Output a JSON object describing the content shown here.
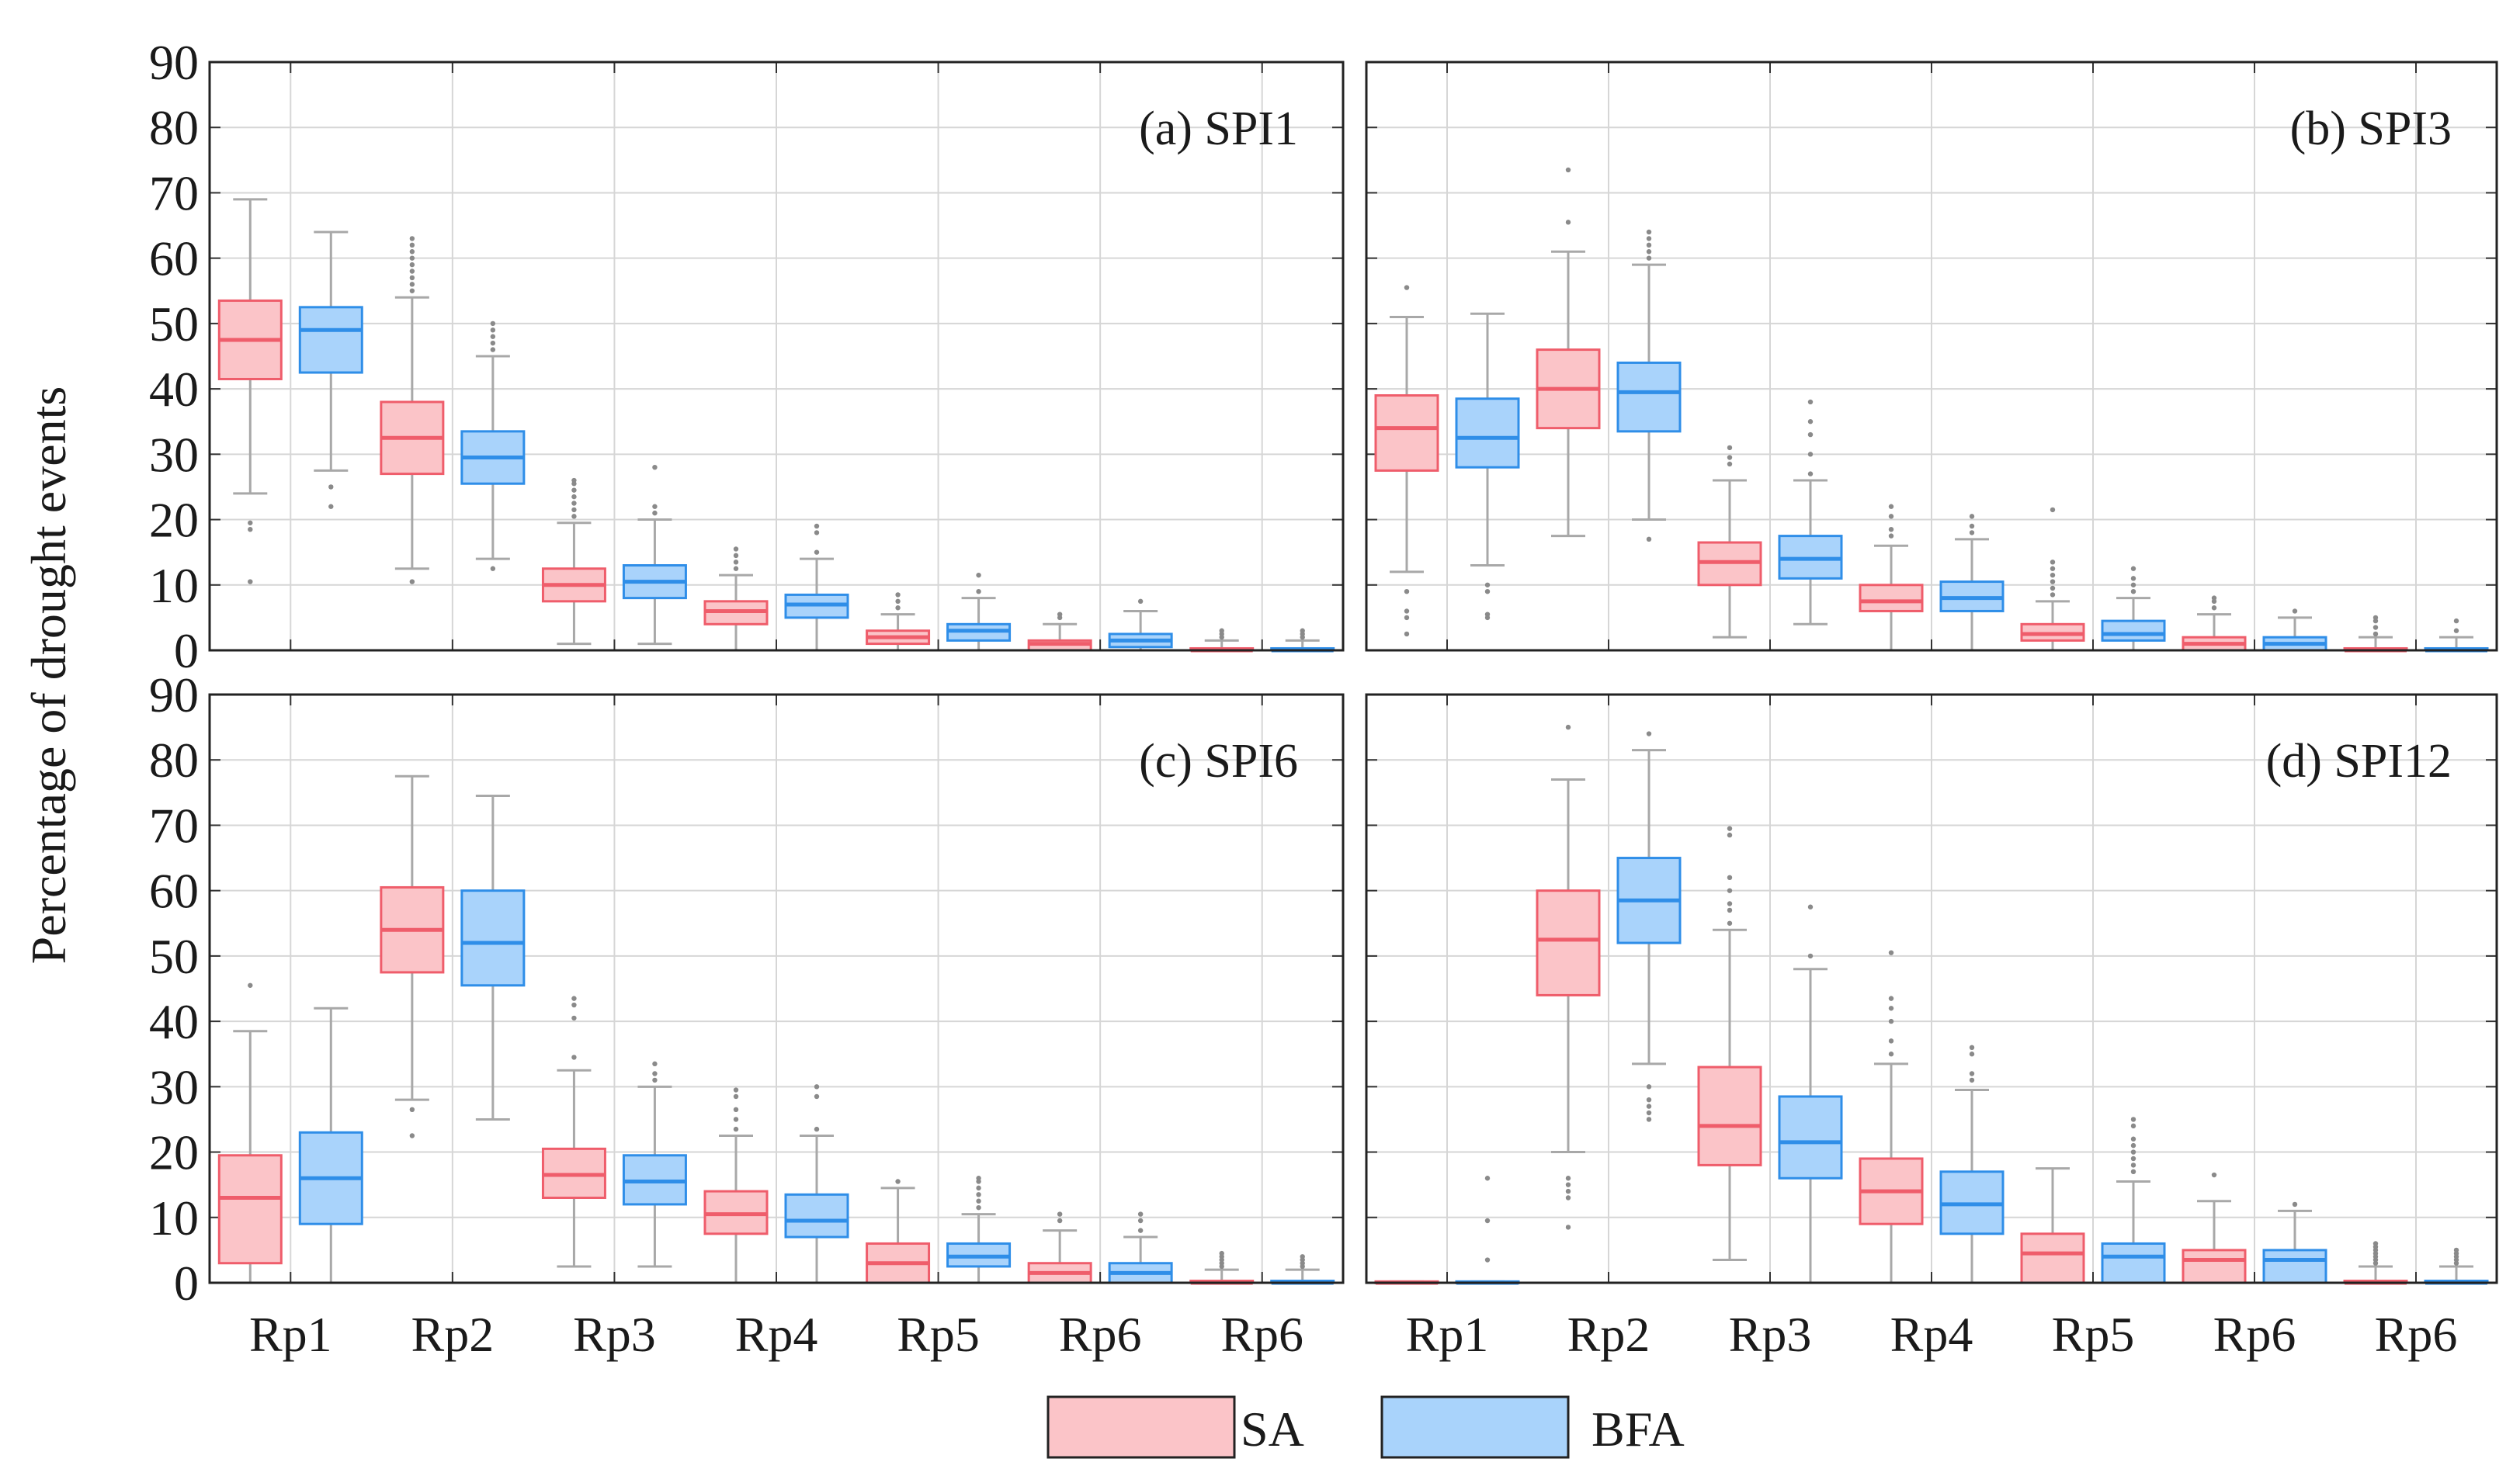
{
  "chart_data": {
    "type": "boxplot",
    "ylabel": "Percentage of drought events",
    "ylim": [
      0,
      90
    ],
    "yticks": [
      0,
      10,
      20,
      30,
      40,
      50,
      60,
      70,
      80,
      90
    ],
    "grid": true,
    "categories": [
      "Rp1",
      "Rp2",
      "Rp3",
      "Rp4",
      "Rp5",
      "Rp6",
      "Rp6"
    ],
    "legend": {
      "position": "bottom-center",
      "entries": [
        {
          "name": "SA",
          "fill": "#fbc4c8",
          "stroke": "#ef5d6b"
        },
        {
          "name": "BFA",
          "fill": "#a9d3fb",
          "stroke": "#2f8ee8"
        }
      ]
    },
    "panels": [
      {
        "title": "(a) SPI1",
        "series": [
          {
            "name": "SA",
            "boxes": [
              {
                "q1": 41.5,
                "median": 47.5,
                "q3": 53.5,
                "whislo": 24,
                "whishi": 69,
                "outliers": [
                  19.5,
                  18.5,
                  10.5
                ]
              },
              {
                "q1": 27,
                "median": 32.5,
                "q3": 38,
                "whislo": 12.5,
                "whishi": 54,
                "outliers": [
                  55,
                  56,
                  57,
                  58,
                  59,
                  60,
                  61,
                  62,
                  63,
                  10.5
                ]
              },
              {
                "q1": 7.5,
                "median": 10,
                "q3": 12.5,
                "whislo": 1,
                "whishi": 19.5,
                "outliers": [
                  20.5,
                  21.5,
                  22.5,
                  23.5,
                  24.5,
                  25.5,
                  26
                ]
              },
              {
                "q1": 4,
                "median": 6,
                "q3": 7.5,
                "whislo": 0,
                "whishi": 11.5,
                "outliers": [
                  12.5,
                  13.5,
                  14.5,
                  15.5
                ]
              },
              {
                "q1": 1,
                "median": 2,
                "q3": 3,
                "whislo": 0,
                "whishi": 5.5,
                "outliers": [
                  6.5,
                  7.5,
                  8.5
                ]
              },
              {
                "q1": 0,
                "median": 1,
                "q3": 1.5,
                "whislo": 0,
                "whishi": 4,
                "outliers": [
                  5,
                  5.5
                ]
              },
              {
                "q1": 0,
                "median": 0,
                "q3": 0.3,
                "whislo": 0,
                "whishi": 1.5,
                "outliers": [
                  2,
                  2.5,
                  3
                ]
              }
            ]
          },
          {
            "name": "BFA",
            "boxes": [
              {
                "q1": 42.5,
                "median": 49,
                "q3": 52.5,
                "whislo": 27.5,
                "whishi": 64,
                "outliers": [
                  25,
                  22
                ]
              },
              {
                "q1": 25.5,
                "median": 29.5,
                "q3": 33.5,
                "whislo": 14,
                "whishi": 45,
                "outliers": [
                  46,
                  47,
                  48,
                  49,
                  50,
                  12.5
                ]
              },
              {
                "q1": 8,
                "median": 10.5,
                "q3": 13,
                "whislo": 1,
                "whishi": 20,
                "outliers": [
                  21,
                  22,
                  28
                ]
              },
              {
                "q1": 5,
                "median": 7,
                "q3": 8.5,
                "whislo": 0,
                "whishi": 14,
                "outliers": [
                  15,
                  18,
                  19
                ]
              },
              {
                "q1": 1.5,
                "median": 3,
                "q3": 4,
                "whislo": 0,
                "whishi": 8,
                "outliers": [
                  9,
                  11.5
                ]
              },
              {
                "q1": 0.5,
                "median": 1.5,
                "q3": 2.5,
                "whislo": 0,
                "whishi": 6,
                "outliers": [
                  7.5
                ]
              },
              {
                "q1": 0,
                "median": 0,
                "q3": 0.3,
                "whislo": 0,
                "whishi": 1.5,
                "outliers": [
                  2,
                  2.5,
                  3
                ]
              }
            ]
          }
        ]
      },
      {
        "title": "(b) SPI3",
        "series": [
          {
            "name": "SA",
            "boxes": [
              {
                "q1": 27.5,
                "median": 34,
                "q3": 39,
                "whislo": 12,
                "whishi": 51,
                "outliers": [
                  55.5,
                  9,
                  6,
                  5,
                  2.5
                ]
              },
              {
                "q1": 34,
                "median": 40,
                "q3": 46,
                "whislo": 17.5,
                "whishi": 61,
                "outliers": [
                  65.5,
                  73.5
                ]
              },
              {
                "q1": 10,
                "median": 13.5,
                "q3": 16.5,
                "whislo": 2,
                "whishi": 26,
                "outliers": [
                  28.5,
                  29.5,
                  31
                ]
              },
              {
                "q1": 6,
                "median": 7.5,
                "q3": 10,
                "whislo": 0,
                "whishi": 16,
                "outliers": [
                  17.5,
                  18.5,
                  20.5,
                  22
                ]
              },
              {
                "q1": 1.5,
                "median": 2.5,
                "q3": 4,
                "whislo": 0,
                "whishi": 7.5,
                "outliers": [
                  8.5,
                  9.5,
                  10.5,
                  11.5,
                  12.5,
                  13.5,
                  21.5
                ]
              },
              {
                "q1": 0,
                "median": 1,
                "q3": 2,
                "whislo": 0,
                "whishi": 5.5,
                "outliers": [
                  6.5,
                  7.5,
                  8
                ]
              },
              {
                "q1": 0,
                "median": 0,
                "q3": 0.3,
                "whislo": 0,
                "whishi": 2,
                "outliers": [
                  2.5,
                  3.5,
                  4.5,
                  5
                ]
              }
            ]
          },
          {
            "name": "BFA",
            "boxes": [
              {
                "q1": 28,
                "median": 32.5,
                "q3": 38.5,
                "whislo": 13,
                "whishi": 51.5,
                "outliers": [
                  10,
                  9,
                  5.5,
                  5
                ]
              },
              {
                "q1": 33.5,
                "median": 39.5,
                "q3": 44,
                "whislo": 20,
                "whishi": 59,
                "outliers": [
                  60,
                  61,
                  62,
                  63,
                  64,
                  17
                ]
              },
              {
                "q1": 11,
                "median": 14,
                "q3": 17.5,
                "whislo": 4,
                "whishi": 26,
                "outliers": [
                  27,
                  30,
                  33,
                  35,
                  38
                ]
              },
              {
                "q1": 6,
                "median": 8,
                "q3": 10.5,
                "whislo": 0,
                "whishi": 17,
                "outliers": [
                  18,
                  19,
                  20.5
                ]
              },
              {
                "q1": 1.5,
                "median": 2.5,
                "q3": 4.5,
                "whislo": 0,
                "whishi": 8,
                "outliers": [
                  9,
                  10,
                  11,
                  12.5
                ]
              },
              {
                "q1": 0,
                "median": 1,
                "q3": 2,
                "whislo": 0,
                "whishi": 5,
                "outliers": [
                  6
                ]
              },
              {
                "q1": 0,
                "median": 0,
                "q3": 0.3,
                "whislo": 0,
                "whishi": 2,
                "outliers": [
                  3,
                  4.5
                ]
              }
            ]
          }
        ]
      },
      {
        "title": "(c) SPI6",
        "series": [
          {
            "name": "SA",
            "boxes": [
              {
                "q1": 3,
                "median": 13,
                "q3": 19.5,
                "whislo": 0,
                "whishi": 38.5,
                "outliers": [
                  45.5
                ]
              },
              {
                "q1": 47.5,
                "median": 54,
                "q3": 60.5,
                "whislo": 28,
                "whishi": 77.5,
                "outliers": [
                  26.5,
                  22.5
                ]
              },
              {
                "q1": 13,
                "median": 16.5,
                "q3": 20.5,
                "whislo": 2.5,
                "whishi": 32.5,
                "outliers": [
                  34.5,
                  40.5,
                  42.5,
                  43.5
                ]
              },
              {
                "q1": 7.5,
                "median": 10.5,
                "q3": 14,
                "whislo": 0,
                "whishi": 22.5,
                "outliers": [
                  23.5,
                  25,
                  26.5,
                  28.5,
                  29.5
                ]
              },
              {
                "q1": 0,
                "median": 3,
                "q3": 6,
                "whislo": 0,
                "whishi": 14.5,
                "outliers": [
                  15.5
                ]
              },
              {
                "q1": 0,
                "median": 1.5,
                "q3": 3,
                "whislo": 0,
                "whishi": 8,
                "outliers": [
                  9.5,
                  10.5
                ]
              },
              {
                "q1": 0,
                "median": 0,
                "q3": 0.3,
                "whislo": 0,
                "whishi": 2,
                "outliers": [
                  2.5,
                  3,
                  3.5,
                  4,
                  4.5
                ]
              }
            ]
          },
          {
            "name": "BFA",
            "boxes": [
              {
                "q1": 9,
                "median": 16,
                "q3": 23,
                "whislo": 0,
                "whishi": 42,
                "outliers": []
              },
              {
                "q1": 45.5,
                "median": 52,
                "q3": 60,
                "whislo": 25,
                "whishi": 74.5,
                "outliers": []
              },
              {
                "q1": 12,
                "median": 15.5,
                "q3": 19.5,
                "whislo": 2.5,
                "whishi": 30,
                "outliers": [
                  31,
                  32,
                  33.5
                ]
              },
              {
                "q1": 7,
                "median": 9.5,
                "q3": 13.5,
                "whislo": 0,
                "whishi": 22.5,
                "outliers": [
                  23.5,
                  28.5,
                  30
                ]
              },
              {
                "q1": 2.5,
                "median": 4,
                "q3": 6,
                "whislo": 0,
                "whishi": 10.5,
                "outliers": [
                  11.5,
                  12.5,
                  13.5,
                  14.5,
                  15.5,
                  16
                ]
              },
              {
                "q1": 0,
                "median": 1.5,
                "q3": 3,
                "whislo": 0,
                "whishi": 7,
                "outliers": [
                  8,
                  9.5,
                  10.5
                ]
              },
              {
                "q1": 0,
                "median": 0,
                "q3": 0.3,
                "whislo": 0,
                "whishi": 2,
                "outliers": [
                  2.5,
                  3,
                  3.5,
                  4
                ]
              }
            ]
          }
        ]
      },
      {
        "title": "(d) SPI12",
        "series": [
          {
            "name": "SA",
            "boxes": [
              {
                "q1": 0,
                "median": 0,
                "q3": 0.2,
                "whislo": 0,
                "whishi": 0.2,
                "outliers": []
              },
              {
                "q1": 44,
                "median": 52.5,
                "q3": 60,
                "whislo": 20,
                "whishi": 77,
                "outliers": [
                  85,
                  16,
                  15,
                  14,
                  13,
                  8.5
                ]
              },
              {
                "q1": 18,
                "median": 24,
                "q3": 33,
                "whislo": 3.5,
                "whishi": 54,
                "outliers": [
                  55,
                  57,
                  58,
                  60,
                  62,
                  68.5,
                  69.5
                ]
              },
              {
                "q1": 9,
                "median": 14,
                "q3": 19,
                "whislo": 0,
                "whishi": 33.5,
                "outliers": [
                  35,
                  37,
                  40,
                  42,
                  43.5,
                  50.5
                ]
              },
              {
                "q1": 0,
                "median": 4.5,
                "q3": 7.5,
                "whislo": 0,
                "whishi": 17.5,
                "outliers": []
              },
              {
                "q1": 0,
                "median": 3.5,
                "q3": 5,
                "whislo": 0,
                "whishi": 12.5,
                "outliers": [
                  16.5
                ]
              },
              {
                "q1": 0,
                "median": 0,
                "q3": 0.3,
                "whislo": 0,
                "whishi": 2.5,
                "outliers": [
                  3,
                  3.5,
                  4,
                  4.5,
                  5,
                  5.5,
                  6
                ]
              }
            ]
          },
          {
            "name": "BFA",
            "boxes": [
              {
                "q1": 0,
                "median": 0,
                "q3": 0.2,
                "whislo": 0,
                "whishi": 0.2,
                "outliers": [
                  16,
                  9.5,
                  3.5
                ]
              },
              {
                "q1": 52,
                "median": 58.5,
                "q3": 65,
                "whislo": 33.5,
                "whishi": 81.5,
                "outliers": [
                  84,
                  30,
                  28,
                  27,
                  26,
                  25
                ]
              },
              {
                "q1": 16,
                "median": 21.5,
                "q3": 28.5,
                "whislo": 0,
                "whishi": 48,
                "outliers": [
                  50,
                  57.5
                ]
              },
              {
                "q1": 7.5,
                "median": 12,
                "q3": 17,
                "whislo": 0,
                "whishi": 29.5,
                "outliers": [
                  31,
                  32,
                  35,
                  36
                ]
              },
              {
                "q1": 0,
                "median": 4,
                "q3": 6,
                "whislo": 0,
                "whishi": 15.5,
                "outliers": [
                  17,
                  18,
                  19,
                  20,
                  21,
                  22,
                  24,
                  25
                ]
              },
              {
                "q1": 0,
                "median": 3.5,
                "q3": 5,
                "whislo": 0,
                "whishi": 11,
                "outliers": [
                  12
                ]
              },
              {
                "q1": 0,
                "median": 0,
                "q3": 0.3,
                "whislo": 0,
                "whishi": 2.5,
                "outliers": [
                  3,
                  3.5,
                  4,
                  4.5,
                  5
                ]
              }
            ]
          }
        ]
      }
    ]
  }
}
